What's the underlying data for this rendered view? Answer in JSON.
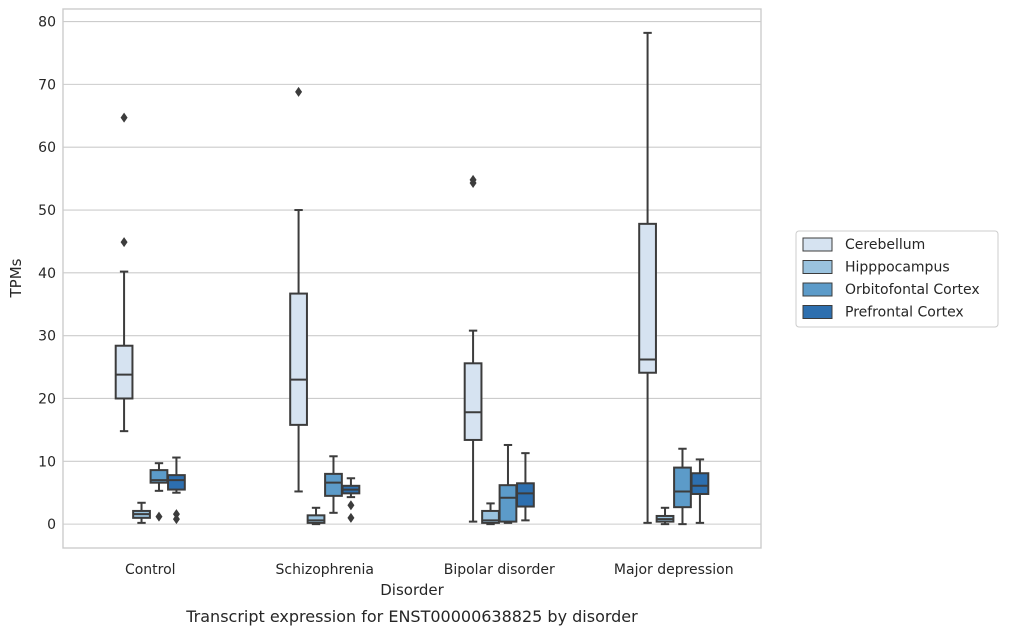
{
  "chart_data": {
    "type": "box",
    "xlabel": "Disorder",
    "ylabel": "TPMs",
    "caption": "Transcript expression for ENST00000638825 by disorder",
    "categories": [
      "Control",
      "Schizophrenia",
      "Bipolar disorder",
      "Major depression"
    ],
    "ylim": [
      -3.8,
      82
    ],
    "yticks": [
      0,
      10,
      20,
      30,
      40,
      50,
      60,
      70,
      80
    ],
    "grid": true,
    "legend_position": "right",
    "series": [
      {
        "name": "Cerebellum",
        "color": "#d6e3f1",
        "boxes": [
          {
            "whisker_low": 14.8,
            "q1": 20.0,
            "median": 23.8,
            "q3": 28.4,
            "whisker_high": 40.2,
            "outliers": [
              44.9,
              64.7
            ]
          },
          {
            "whisker_low": 5.2,
            "q1": 15.8,
            "median": 23.0,
            "q3": 36.7,
            "whisker_high": 50.0,
            "outliers": [
              68.8
            ]
          },
          {
            "whisker_low": 0.4,
            "q1": 13.4,
            "median": 17.8,
            "q3": 25.6,
            "whisker_high": 30.8,
            "outliers": [
              54.3,
              54.8
            ]
          },
          {
            "whisker_low": 0.2,
            "q1": 24.1,
            "median": 26.2,
            "q3": 47.8,
            "whisker_high": 78.2,
            "outliers": []
          }
        ]
      },
      {
        "name": "Hipppocampus",
        "color": "#9ac3df",
        "boxes": [
          {
            "whisker_low": 0.2,
            "q1": 1.0,
            "median": 1.6,
            "q3": 2.1,
            "whisker_high": 3.4,
            "outliers": []
          },
          {
            "whisker_low": 0.0,
            "q1": 0.2,
            "median": 0.6,
            "q3": 1.4,
            "whisker_high": 2.6,
            "outliers": []
          },
          {
            "whisker_low": 0.0,
            "q1": 0.2,
            "median": 0.6,
            "q3": 2.1,
            "whisker_high": 3.3,
            "outliers": []
          },
          {
            "whisker_low": 0.0,
            "q1": 0.4,
            "median": 0.8,
            "q3": 1.3,
            "whisker_high": 2.6,
            "outliers": []
          }
        ]
      },
      {
        "name": "Orbitofontal Cortex",
        "color": "#5c9bc9",
        "boxes": [
          {
            "whisker_low": 5.3,
            "q1": 6.6,
            "median": 7.0,
            "q3": 8.6,
            "whisker_high": 9.7,
            "outliers": [
              1.2
            ]
          },
          {
            "whisker_low": 1.8,
            "q1": 4.5,
            "median": 6.6,
            "q3": 8.0,
            "whisker_high": 10.8,
            "outliers": []
          },
          {
            "whisker_low": 0.2,
            "q1": 0.4,
            "median": 4.2,
            "q3": 6.2,
            "whisker_high": 12.6,
            "outliers": []
          },
          {
            "whisker_low": 0.0,
            "q1": 2.7,
            "median": 5.2,
            "q3": 9.0,
            "whisker_high": 12.0,
            "outliers": []
          }
        ]
      },
      {
        "name": "Prefrontal Cortex",
        "color": "#2d6faf",
        "boxes": [
          {
            "whisker_low": 5.0,
            "q1": 5.5,
            "median": 7.0,
            "q3": 7.8,
            "whisker_high": 10.6,
            "outliers": [
              0.8,
              1.6
            ]
          },
          {
            "whisker_low": 4.3,
            "q1": 4.9,
            "median": 5.5,
            "q3": 6.1,
            "whisker_high": 7.3,
            "outliers": [
              3.0,
              1.0
            ]
          },
          {
            "whisker_low": 0.6,
            "q1": 2.8,
            "median": 4.9,
            "q3": 6.5,
            "whisker_high": 11.3,
            "outliers": []
          },
          {
            "whisker_low": 0.2,
            "q1": 4.8,
            "median": 6.1,
            "q3": 8.1,
            "whisker_high": 10.3,
            "outliers": []
          }
        ]
      }
    ]
  }
}
